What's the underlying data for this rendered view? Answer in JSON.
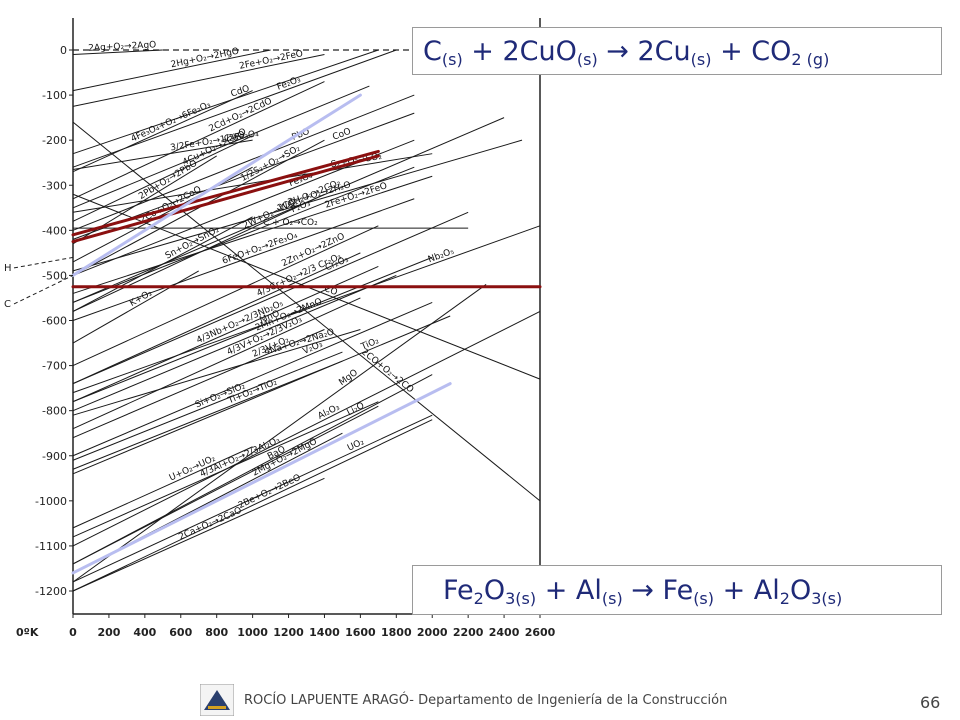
{
  "chart_data": {
    "type": "line",
    "xlabel": "0ºK",
    "ylim": [
      -1250,
      0
    ],
    "xlim": [
      0,
      2600
    ],
    "y_ticks": [
      "0",
      "-100",
      "-200",
      "-300",
      "-400",
      "-500",
      "-600",
      "-700",
      "-800",
      "-900",
      "-1000",
      "-1100",
      "-1200"
    ],
    "x_ticks": [
      "0",
      "200",
      "400",
      "600",
      "800",
      "1000",
      "1200",
      "1400",
      "1600",
      "1800",
      "2000",
      "2200",
      "2400",
      "2600"
    ],
    "left_marks": [
      "H",
      "C"
    ],
    "reactions": [
      {
        "label": "2Ag+O₂→2AgO",
        "x": [
          0,
          500
        ],
        "y": [
          -10,
          0
        ]
      },
      {
        "label": "2Hg+O₂→2HgO",
        "x": [
          0,
          1100
        ],
        "y": [
          -90,
          0
        ]
      },
      {
        "label": "2Fe+O₂→2FeO",
        "x": [
          0,
          1400
        ],
        "y": [
          -125,
          -10
        ]
      },
      {
        "label": "CdO",
        "x": [
          0,
          1700
        ],
        "y": [
          -230,
          0
        ]
      },
      {
        "label": "Fe₂O₃",
        "x": [
          0,
          1800
        ],
        "y": [
          -260,
          0
        ]
      },
      {
        "label": "3/2Fe+O₂→1/2Fe₃O₄",
        "x": [
          0,
          1000
        ],
        "y": [
          -265,
          -200
        ]
      },
      {
        "label": "4Fe₃O₄+O₂→6Fe₂O₃",
        "x": [
          0,
          1000
        ],
        "y": [
          -270,
          -90
        ]
      },
      {
        "label": "2Cd+O₂→2CdO",
        "x": [
          0,
          1400
        ],
        "y": [
          -330,
          -70
        ]
      },
      {
        "label": "4Cu+O₂→2CuO",
        "x": [
          0,
          1000
        ],
        "y": [
          -380,
          -190
        ]
      },
      {
        "label": "Cu₂O",
        "x": [
          0,
          1650
        ],
        "y": [
          -350,
          -80
        ]
      },
      {
        "label": "PbO",
        "x": [
          0,
          1900
        ],
        "y": [
          -400,
          -100
        ]
      },
      {
        "label": "CoO",
        "x": [
          0,
          1900
        ],
        "y": [
          -420,
          -140
        ]
      },
      {
        "label": "2CO+O₂→2CO₂",
        "x": [
          0,
          2400
        ],
        "y": [
          -560,
          -150
        ]
      },
      {
        "label": "2Pb+O₂→2PbO",
        "x": [
          0,
          800
        ],
        "y": [
          -430,
          -235
        ]
      },
      {
        "label": "1/2S₂+O₂→SO₂",
        "x": [
          0,
          1400
        ],
        "y": [
          -500,
          -200
        ]
      },
      {
        "label": "2H₂+O₂→2H₂O",
        "x": [
          0,
          2500
        ],
        "y": [
          -490,
          -200
        ]
      },
      {
        "label": "Fe₃O₄",
        "x": [
          0,
          1900
        ],
        "y": [
          -500,
          -200
        ]
      },
      {
        "label": "S₂+O₂→SO₂",
        "x": [
          0,
          2000
        ],
        "y": [
          -360,
          -230
        ]
      },
      {
        "label": "2Co+O₂→2CoO",
        "x": [
          0,
          1000
        ],
        "y": [
          -470,
          -260
        ]
      },
      {
        "label": "P₂O₃",
        "x": [
          0,
          1900
        ],
        "y": [
          -560,
          -260
        ]
      },
      {
        "label": "2Fe+O₂→2FeO",
        "x": [
          0,
          2000
        ],
        "y": [
          -540,
          -280
        ]
      },
      {
        "label": "6FeO+O₂→2Fe₃O₄",
        "x": [
          0,
          1900
        ],
        "y": [
          -600,
          -330
        ]
      },
      {
        "label": "Cr₂O₃",
        "x": [
          0,
          2200
        ],
        "y": [
          -740,
          -360
        ]
      },
      {
        "label": "Nb₂O₅",
        "x": [
          0,
          2600
        ],
        "y": [
          -760,
          -390
        ]
      },
      {
        "label": "C + O₂→CO₂",
        "x": [
          0,
          2200
        ],
        "y": [
          -395,
          -395
        ]
      },
      {
        "label": "Sn+O₂→SnO₂",
        "x": [
          0,
          1000
        ],
        "y": [
          -580,
          -370
        ]
      },
      {
        "label": "2W+O₂→WO₂",
        "x": [
          0,
          1400
        ],
        "y": [
          -580,
          -320
        ]
      },
      {
        "label": "MnO",
        "x": [
          0,
          2000
        ],
        "y": [
          -780,
          -460
        ]
      },
      {
        "label": "2CO+O₂→2CO",
        "x": [
          0,
          2600
        ],
        "y": [
          -160,
          -1000
        ]
      },
      {
        "label": "2Zn+O₂→2ZnO",
        "x": [
          0,
          1700
        ],
        "y": [
          -700,
          -390
        ]
      },
      {
        "label": "K+O₂",
        "x": [
          0,
          700
        ],
        "y": [
          -650,
          -490
        ]
      },
      {
        "label": "V₂O₃",
        "x": [
          0,
          2000
        ],
        "y": [
          -900,
          -560
        ]
      },
      {
        "label": "TiO₂",
        "x": [
          0,
          2100
        ],
        "y": [
          -940,
          -590
        ]
      },
      {
        "label": "Al₂O₃",
        "x": [
          0,
          2600
        ],
        "y": [
          -1100,
          -580
        ]
      },
      {
        "label": "MgO",
        "x": [
          0,
          2300
        ],
        "y": [
          -1180,
          -520
        ]
      },
      {
        "label": "4/3Cr+O₂→2/3 Cr₂O₃",
        "x": [
          0,
          1600
        ],
        "y": [
          -740,
          -450
        ]
      },
      {
        "label": "4/3Nb+O₂→2/3Nb₂O₅",
        "x": [
          0,
          1700
        ],
        "y": [
          -780,
          -480
        ]
      },
      {
        "label": "2Mn+O₂→2MnO",
        "x": [
          0,
          1800
        ],
        "y": [
          -800,
          -500
        ]
      },
      {
        "label": "4Na+O₂→2Na₂O",
        "x": [
          0,
          1600
        ],
        "y": [
          -810,
          -620
        ]
      },
      {
        "label": "CO",
        "x": [
          0,
          2600
        ],
        "y": [
          -320,
          -730
        ]
      },
      {
        "label": "4/3V+O₂→2/3V₂O₃",
        "x": [
          0,
          1600
        ],
        "y": [
          -840,
          -550
        ]
      },
      {
        "label": "2/3V+O₂",
        "x": [
          0,
          1400
        ],
        "y": [
          -860,
          -620
        ]
      },
      {
        "label": "Si+O₂→SiO₂",
        "x": [
          0,
          1500
        ],
        "y": [
          -910,
          -670
        ]
      },
      {
        "label": "Ti+O₂→TiO₂",
        "x": [
          0,
          1500
        ],
        "y": [
          -930,
          -690
        ]
      },
      {
        "label": "Li₂O",
        "x": [
          0,
          2000
        ],
        "y": [
          -1140,
          -720
        ]
      },
      {
        "label": "4/3Al+O₂→2/3Al₂O₃",
        "x": [
          0,
          1700
        ],
        "y": [
          -1080,
          -780
        ]
      },
      {
        "label": "BaO",
        "x": [
          0,
          1700
        ],
        "y": [
          -1140,
          -790
        ]
      },
      {
        "label": "UO₂",
        "x": [
          0,
          2000
        ],
        "y": [
          -1180,
          -810
        ]
      },
      {
        "label": "2Be+O₂→2BeO",
        "x": [
          0,
          2000
        ],
        "y": [
          -1200,
          -820
        ]
      },
      {
        "label": "U+O₂→UO₂",
        "x": [
          0,
          1000
        ],
        "y": [
          -1060,
          -880
        ]
      },
      {
        "label": "2Mg+O₂→2MgO",
        "x": [
          0,
          1500
        ],
        "y": [
          -1160,
          -850
        ]
      },
      {
        "label": "2Ca+O₂→2CaO",
        "x": [
          0,
          1400
        ],
        "y": [
          -1200,
          -950
        ]
      }
    ],
    "highlights": [
      {
        "kind": "CuO reduction",
        "color": "#8b1010",
        "x": [
          0,
          1700
        ],
        "y": [
          -410,
          -225
        ]
      },
      {
        "kind": "CO₂ line",
        "color": "#8b1010",
        "x": [
          0,
          1700
        ],
        "y": [
          -425,
          -235
        ]
      },
      {
        "kind": "Al₂O₃ reference",
        "color": "#8b1010",
        "x": [
          0,
          2600
        ],
        "y": [
          -525,
          -525
        ]
      },
      {
        "kind": "CuO upper",
        "color": "#b8bdf0",
        "x": [
          0,
          1600
        ],
        "y": [
          -500,
          -100
        ]
      },
      {
        "kind": "Al₂O₃ lower",
        "color": "#b8bdf0",
        "x": [
          0,
          2100
        ],
        "y": [
          -1160,
          -740
        ]
      }
    ],
    "dashed_zero": {
      "x": [
        0,
        2600
      ],
      "y": [
        0,
        0
      ]
    }
  },
  "equations": {
    "eq1": {
      "p1": "C",
      "s1": "(s)",
      "p2": " + 2CuO",
      "s2": "(s)",
      "arrow": "  →  ",
      "p3": "2Cu",
      "s3": "(s)",
      "p4": " + CO",
      "s4": "2",
      "s5": " (g)"
    },
    "eq2": {
      "p1": "Fe",
      "s1": "2",
      "p2": "O",
      "s2": "3(s)",
      "p3": " + Al",
      "s3": "(s)",
      "arrow": "  →  ",
      "p4": "Fe",
      "s4": "(s)",
      "p5": " + Al",
      "s5": "2",
      "p6": "O",
      "s6": "3(s)"
    }
  },
  "footer": {
    "text": "ROCÍO LAPUENTE ARAGÓ- Departamento de Ingeniería de la Construcción",
    "page": "66"
  },
  "colors": {
    "accent": "#1f2a78",
    "highlight_red": "#8b1010",
    "highlight_blue": "#b8bdf0"
  }
}
